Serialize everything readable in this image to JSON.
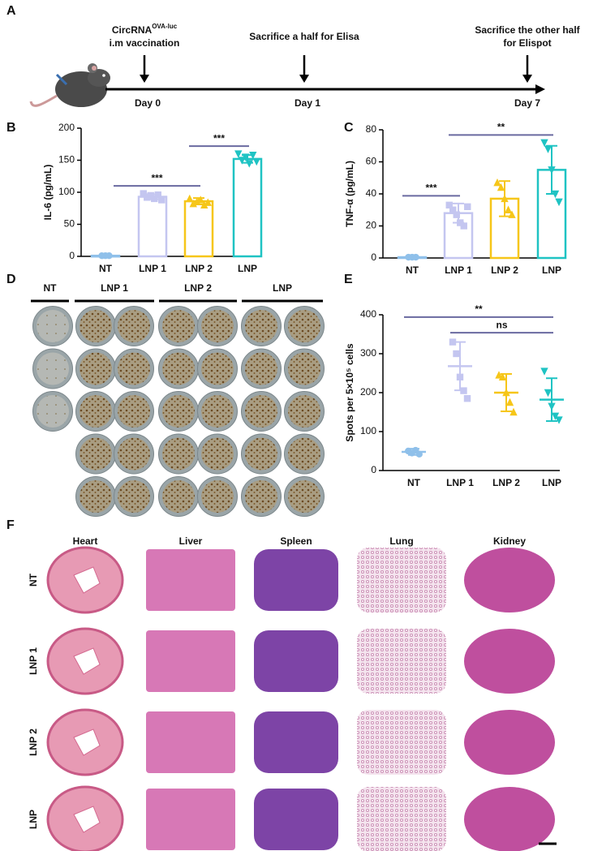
{
  "panel_labels": [
    "A",
    "B",
    "C",
    "D",
    "E",
    "F"
  ],
  "timeline": {
    "steps": [
      {
        "day": "Day 0",
        "lines": [
          "CircRNA",
          "i.m vaccination"
        ],
        "superscript": "OVA-luc"
      },
      {
        "day": "Day 1",
        "lines": [
          "Sacrifice a half for Elisa"
        ]
      },
      {
        "day": "Day 7",
        "lines": [
          "Sacrifice the other half",
          "for Elispot"
        ]
      }
    ]
  },
  "elispot_plates": {
    "groups": [
      "NT",
      "LNP 1",
      "LNP 2",
      "LNP"
    ]
  },
  "histology": {
    "organs": [
      "Heart",
      "Liver",
      "Spleen",
      "Lung",
      "Kidney"
    ],
    "groups": [
      "NT",
      "LNP 1",
      "LNP 2",
      "LNP"
    ]
  },
  "chart_data": [
    {
      "type": "bar",
      "y_label": "IL-6 (pg/mL)",
      "categories": [
        "NT",
        "LNP 1",
        "LNP 2",
        "LNP"
      ],
      "values": [
        1,
        93,
        86,
        152
      ],
      "errors": [
        0.3,
        4,
        5,
        6
      ],
      "points": [
        [
          1,
          1,
          1
        ],
        [
          98,
          92,
          95,
          90,
          96,
          88
        ],
        [
          90,
          82,
          85,
          88,
          80,
          84
        ],
        [
          160,
          150,
          155,
          145,
          158,
          148
        ]
      ],
      "colors": [
        "#8fc0ea",
        "#c4c6f0",
        "#f6c619",
        "#1fc3c3"
      ],
      "markers": [
        "circle",
        "square",
        "triangle",
        "triangle-down"
      ],
      "ylim": [
        0,
        200
      ],
      "yticks": [
        0,
        50,
        100,
        150,
        200
      ],
      "annotations": [
        {
          "label": "***",
          "from": 0,
          "to": 2
        },
        {
          "label": "***",
          "from": 2,
          "to": 3
        }
      ]
    },
    {
      "type": "bar",
      "y_label": "TNF-α (pg/mL)",
      "categories": [
        "NT",
        "LNP 1",
        "LNP 2",
        "LNP"
      ],
      "values": [
        0.5,
        28,
        37,
        55
      ],
      "errors": [
        0.3,
        6,
        11,
        15
      ],
      "points": [
        [
          0.5,
          0.5,
          0.5
        ],
        [
          33,
          30,
          27,
          22,
          20,
          32
        ],
        [
          47,
          44,
          37,
          30,
          27
        ],
        [
          72,
          68,
          55,
          40,
          35
        ]
      ],
      "colors": [
        "#8fc0ea",
        "#c4c6f0",
        "#f6c619",
        "#1fc3c3"
      ],
      "markers": [
        "circle",
        "square",
        "triangle",
        "triangle-down"
      ],
      "ylim": [
        0,
        80
      ],
      "yticks": [
        0,
        20,
        40,
        60,
        80
      ],
      "annotations": [
        {
          "label": "***",
          "from": 0,
          "to": 1
        },
        {
          "label": "**",
          "from": 1,
          "to": 3
        }
      ]
    },
    {
      "type": "dot",
      "y_label": "Spots per 5×10⁵ cells",
      "categories": [
        "NT",
        "LNP 1",
        "LNP 2",
        "LNP"
      ],
      "values": [
        48,
        268,
        200,
        182
      ],
      "errors": [
        8,
        62,
        48,
        55
      ],
      "points": [
        [
          50,
          45,
          52,
          42
        ],
        [
          330,
          300,
          240,
          205,
          185
        ],
        [
          245,
          240,
          200,
          175,
          150
        ],
        [
          255,
          200,
          165,
          140,
          130
        ]
      ],
      "colors": [
        "#8fc0ea",
        "#c4c6f0",
        "#f6c619",
        "#1fc3c3"
      ],
      "markers": [
        "circle",
        "square",
        "triangle",
        "triangle-down"
      ],
      "ylim": [
        0,
        400
      ],
      "yticks": [
        0,
        100,
        200,
        300,
        400
      ],
      "annotations": [
        {
          "label": "ns",
          "from": 1,
          "to": 3
        },
        {
          "label": "**",
          "from": 0,
          "to": 3
        }
      ]
    }
  ]
}
